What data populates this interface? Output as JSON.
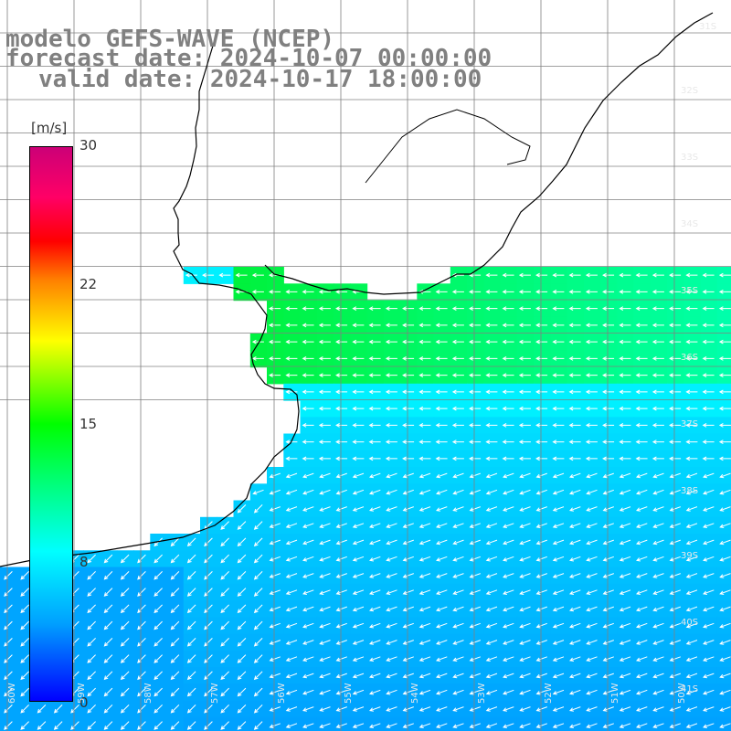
{
  "title": {
    "model": "modelo GEFS-WAVE (NCEP)",
    "forecast": "forecast date: 2024-10-07 00:00:00",
    "valid": "valid date: 2024-10-17 18:00:00"
  },
  "colorbar": {
    "unit": "[m/s]",
    "min": 0,
    "max": 30,
    "ticks": [
      "30",
      "22",
      "15",
      "8",
      "0"
    ],
    "colors": [
      "#0000ff",
      "#00a0ff",
      "#00ffff",
      "#00ff66",
      "#00ff00",
      "#ffff00",
      "#ff8000",
      "#ff0000",
      "#ff0066",
      "#cc0077"
    ]
  },
  "lat_labels": [
    "31S",
    "32S",
    "33S",
    "34S",
    "35S",
    "36S",
    "37S",
    "38S",
    "39S",
    "40S",
    "41S"
  ],
  "lon_labels": [
    "60W",
    "59W",
    "58W",
    "57W",
    "56W",
    "55W",
    "54W",
    "53W",
    "52W",
    "51W",
    "50W"
  ],
  "map": {
    "land_color": "#ffffff",
    "grid_color": "#808080",
    "coast_color": "#000000",
    "arrow_color": "#ffffff"
  }
}
